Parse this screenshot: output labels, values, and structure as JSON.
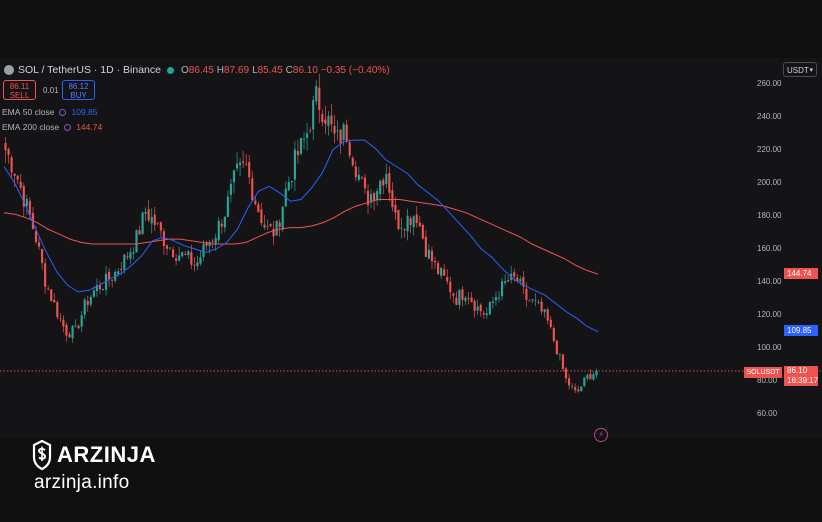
{
  "header": {
    "title": "SOL / TetherUS · 1D · Binance",
    "ohlc": [
      {
        "k": "O",
        "v": "86.45"
      },
      {
        "k": "H",
        "v": "87.69"
      },
      {
        "k": "L",
        "v": "85.45"
      },
      {
        "k": "C",
        "v": "86.10 −0.35 (−0.40%)"
      }
    ]
  },
  "trade": {
    "sell_price": "86.11",
    "sell_label": "SELL",
    "spread": "0.01",
    "buy_price": "86.12",
    "buy_label": "BUY"
  },
  "indicators": [
    {
      "label": "EMA",
      "params": "50 close",
      "value": "109.85",
      "color": "#2962ff"
    },
    {
      "label": "EMA",
      "params": "200 close",
      "value": "144.74",
      "color": "#ef5350"
    }
  ],
  "currency": "USDT",
  "price_axis": [
    "260.00",
    "240.00",
    "220.00",
    "200.00",
    "180.00",
    "160.00",
    "140.00",
    "120.00",
    "100.00",
    "80.00",
    "60.00"
  ],
  "tags": {
    "ema200": "144.74",
    "ema50": "109.85",
    "symbol": "SOLUSDT",
    "price": "86.10",
    "countdown": "16:39:17"
  },
  "watermark": {
    "brand": "ARZINJA",
    "site": "arzinja.info"
  },
  "colors": {
    "up": "#26a69a",
    "down": "#ef5350",
    "ema50": "#2962ff",
    "ema200": "#ef5350",
    "background": "#141416"
  },
  "chart_data": {
    "type": "candlestick",
    "title": "SOL / TetherUS · 1D · Binance",
    "ylim": [
      60,
      260
    ],
    "grid": false,
    "series": [
      {
        "name": "SOL / TetherUS",
        "kind": "close",
        "values": [
          220,
          207,
          188,
          168,
          140,
          124,
          110,
          110,
          127,
          136,
          140,
          146,
          155,
          165,
          183,
          175,
          164,
          158,
          155,
          150,
          162,
          170,
          184,
          205,
          210,
          188,
          172,
          170,
          196,
          215,
          228,
          252,
          241,
          225,
          232,
          210,
          190,
          197,
          208,
          176,
          178,
          182,
          160,
          148,
          140,
          130,
          135,
          125,
          120,
          132,
          140,
          142,
          130,
          126,
          118,
          100,
          80,
          72,
          82,
          86.1
        ]
      },
      {
        "name": "EMA 50 close",
        "values": [
          210,
          200,
          187,
          172,
          158,
          146,
          138,
          134,
          135,
          138,
          142,
          145,
          150,
          156,
          165,
          167,
          165,
          162,
          160,
          158,
          160,
          164,
          172,
          185,
          195,
          198,
          194,
          189,
          190,
          197,
          206,
          220,
          225,
          226,
          226,
          221,
          214,
          210,
          206,
          199,
          194,
          189,
          182,
          175,
          168,
          160,
          155,
          148,
          142,
          138,
          135,
          132,
          127,
          122,
          118,
          113,
          109.85
        ]
      },
      {
        "name": "EMA 200 close",
        "values": [
          182,
          181,
          179,
          176,
          172,
          169,
          166,
          164,
          163,
          163,
          163,
          163,
          163,
          164,
          165,
          166,
          166,
          165,
          164,
          163,
          163,
          163,
          164,
          167,
          170,
          172,
          173,
          173,
          174,
          176,
          179,
          183,
          186,
          188,
          190,
          190,
          190,
          189,
          188,
          187,
          186,
          184,
          182,
          179,
          176,
          173,
          170,
          167,
          163,
          160,
          157,
          154,
          150,
          147,
          144.74
        ]
      }
    ],
    "last_price": 86.1
  }
}
